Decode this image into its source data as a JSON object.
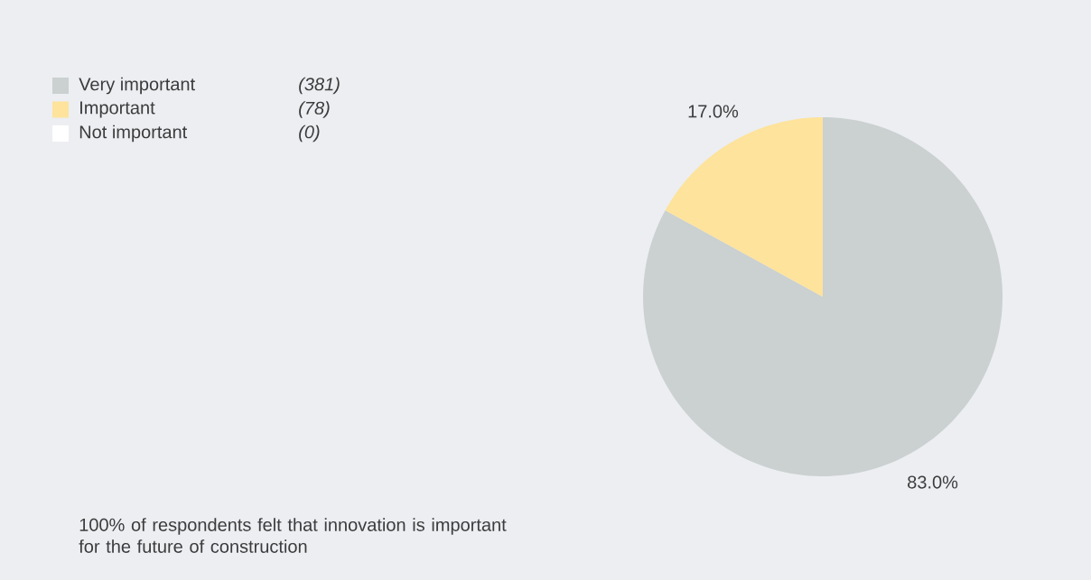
{
  "chart_data": {
    "type": "pie",
    "categories": [
      "Very important",
      "Important",
      "Not important"
    ],
    "values": [
      83.0,
      17.0,
      0
    ],
    "colors": [
      "#cbd0d0",
      "#fde39b",
      "#ffffff"
    ],
    "value_labels": [
      "83.0%",
      "17.0%",
      null
    ],
    "legend": "top left",
    "annotations": [
      "(381)",
      "(78)",
      "(0)",
      "100% of respondents felt that innovation is important for the future of construction"
    ]
  }
}
